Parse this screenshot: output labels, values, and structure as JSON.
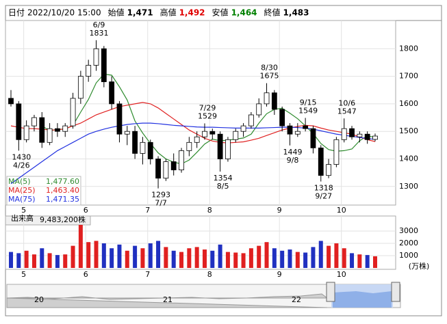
{
  "chart_data": {
    "type": "candlestick",
    "header": [
      {
        "label": "日付",
        "text": "2022/10/20 15:00"
      },
      {
        "label": "始値",
        "value": 1471,
        "text": "1,471",
        "color": "#000000"
      },
      {
        "label": "高値",
        "value": 1492,
        "text": "1,492",
        "color": "#e00000"
      },
      {
        "label": "安値",
        "value": 1464,
        "text": "1,464",
        "color": "#008000"
      },
      {
        "label": "終値",
        "value": 1483,
        "text": "1,483",
        "color": "#000000"
      }
    ],
    "categories": [
      null,
      null,
      "5",
      null,
      null,
      null,
      null,
      null,
      null,
      null,
      "6",
      null,
      null,
      null,
      null,
      null,
      null,
      null,
      "7",
      null,
      null,
      null,
      null,
      null,
      null,
      null,
      "8",
      null,
      null,
      null,
      null,
      null,
      null,
      null,
      null,
      "9",
      null,
      null,
      null,
      null,
      null,
      null,
      null,
      "10",
      null,
      null,
      null,
      null
    ],
    "open": [
      1620,
      1600,
      1470,
      1520,
      1550,
      1460,
      1510,
      1500,
      1520,
      1620,
      1700,
      1740,
      1800,
      1680,
      1600,
      1490,
      1500,
      1420,
      1460,
      1400,
      1330,
      1390,
      1360,
      1430,
      1460,
      1480,
      1500,
      1490,
      1400,
      1470,
      1500,
      1520,
      1560,
      1600,
      1640,
      1580,
      1520,
      1490,
      1520,
      1510,
      1440,
      1340,
      1380,
      1470,
      1510,
      1480,
      1490,
      1471
    ],
    "high": [
      1650,
      1610,
      1540,
      1560,
      1570,
      1530,
      1530,
      1530,
      1640,
      1720,
      1760,
      1831,
      1810,
      1700,
      1610,
      1520,
      1520,
      1480,
      1470,
      1410,
      1400,
      1420,
      1440,
      1480,
      1500,
      1529,
      1510,
      1500,
      1480,
      1510,
      1530,
      1570,
      1620,
      1675,
      1650,
      1590,
      1530,
      1530,
      1549,
      1520,
      1450,
      1400,
      1480,
      1547,
      1520,
      1500,
      1500,
      1492
    ],
    "low": [
      1590,
      1430,
      1460,
      1500,
      1440,
      1450,
      1480,
      1480,
      1510,
      1600,
      1680,
      1720,
      1660,
      1580,
      1460,
      1450,
      1400,
      1380,
      1380,
      1293,
      1320,
      1340,
      1350,
      1410,
      1440,
      1470,
      1470,
      1354,
      1390,
      1460,
      1480,
      1510,
      1550,
      1590,
      1560,
      1500,
      1449,
      1480,
      1500,
      1420,
      1318,
      1330,
      1370,
      1460,
      1470,
      1460,
      1455,
      1464
    ],
    "close": [
      1600,
      1470,
      1520,
      1550,
      1460,
      1510,
      1500,
      1520,
      1620,
      1700,
      1740,
      1800,
      1680,
      1600,
      1490,
      1500,
      1420,
      1460,
      1400,
      1330,
      1390,
      1360,
      1430,
      1460,
      1480,
      1500,
      1490,
      1400,
      1470,
      1500,
      1520,
      1560,
      1600,
      1640,
      1580,
      1520,
      1490,
      1500,
      1510,
      1440,
      1340,
      1380,
      1470,
      1510,
      1480,
      1490,
      1470,
      1483
    ],
    "up_color": "#ffffff",
    "down_color": "#000000",
    "series": [
      {
        "name": "MA(5)",
        "legend_value": {
          "value": 1477.6,
          "label": "1,477.60"
        },
        "color": "#2e8b2e",
        "values": [
          null,
          null,
          null,
          null,
          1520,
          1502,
          1508,
          1508,
          1522,
          1570,
          1616,
          1676,
          1708,
          1704,
          1662,
          1614,
          1538,
          1494,
          1456,
          1422,
          1400,
          1388,
          1382,
          1396,
          1424,
          1454,
          1472,
          1466,
          1468,
          1472,
          1476,
          1490,
          1530,
          1564,
          1580,
          1584,
          1566,
          1546,
          1520,
          1492,
          1456,
          1434,
          1428,
          1430,
          1436,
          1466,
          1484,
          1478
        ]
      },
      {
        "name": "MA(25)",
        "legend_value": {
          "value": 1463.4,
          "label": "1,463.40"
        },
        "color": "#e02020",
        "values": [
          1520,
          1515,
          1510,
          1510,
          1508,
          1505,
          1505,
          1510,
          1520,
          1530,
          1545,
          1560,
          1570,
          1580,
          1590,
          1595,
          1600,
          1605,
          1600,
          1585,
          1565,
          1545,
          1525,
          1505,
          1490,
          1475,
          1465,
          1460,
          1458,
          1460,
          1462,
          1468,
          1475,
          1485,
          1495,
          1505,
          1512,
          1518,
          1522,
          1520,
          1512,
          1505,
          1500,
          1495,
          1490,
          1480,
          1470,
          1463
        ]
      },
      {
        "name": "MA(75)",
        "legend_value": {
          "value": 1471.35,
          "label": "1,471.35"
        },
        "color": "#2030e0",
        "values": [
          1310,
          1330,
          1350,
          1370,
          1390,
          1410,
          1430,
          1445,
          1460,
          1475,
          1490,
          1500,
          1508,
          1515,
          1520,
          1525,
          1528,
          1530,
          1530,
          1528,
          1525,
          1522,
          1520,
          1518,
          1516,
          1515,
          1515,
          1514,
          1513,
          1512,
          1512,
          1512,
          1512,
          1513,
          1514,
          1515,
          1515,
          1514,
          1512,
          1508,
          1502,
          1496,
          1490,
          1486,
          1482,
          1478,
          1474,
          1471
        ]
      }
    ],
    "ylim": [
      1232.5,
      1902.5
    ],
    "yticks": [
      1300,
      1400,
      1500,
      1600,
      1700,
      1800
    ],
    "grid": true,
    "annotations": [
      {
        "date": "4/26",
        "value": 1430
      },
      {
        "date": "6/9",
        "value": 1831
      },
      {
        "date": "7/7",
        "value": 1293
      },
      {
        "date": "7/29",
        "value": 1529
      },
      {
        "date": "8/5",
        "value": 1354
      },
      {
        "date": "8/30",
        "value": 1675
      },
      {
        "date": "9/8",
        "value": 1449
      },
      {
        "date": "9/15",
        "value": 1549
      },
      {
        "date": "9/27",
        "value": 1318
      },
      {
        "date": "10/6",
        "value": 1547
      }
    ],
    "volume": {
      "label": "出来高",
      "total": {
        "value": 9483200,
        "text": "9,483,200株"
      },
      "unit": "(万株)",
      "up_color": "#e02020",
      "down_color": "#2030c0",
      "values": [
        1300,
        1200,
        1400,
        1100,
        1600,
        1200,
        1050,
        1100,
        1800,
        3500,
        2100,
        2200,
        2000,
        1600,
        1900,
        1400,
        1800,
        1600,
        2000,
        2200,
        1700,
        1400,
        1300,
        1600,
        1700,
        1500,
        1400,
        1900,
        1300,
        1250,
        1200,
        1600,
        1800,
        2100,
        1600,
        1400,
        1500,
        1300,
        1250,
        1700,
        2200,
        1800,
        2000,
        1600,
        1200,
        1100,
        1050,
        948
      ],
      "ylim": [
        0,
        4000
      ],
      "yticks": [
        1000,
        2000,
        3000
      ]
    },
    "navigator": {
      "labels": [
        "20",
        "21",
        "22"
      ]
    }
  }
}
